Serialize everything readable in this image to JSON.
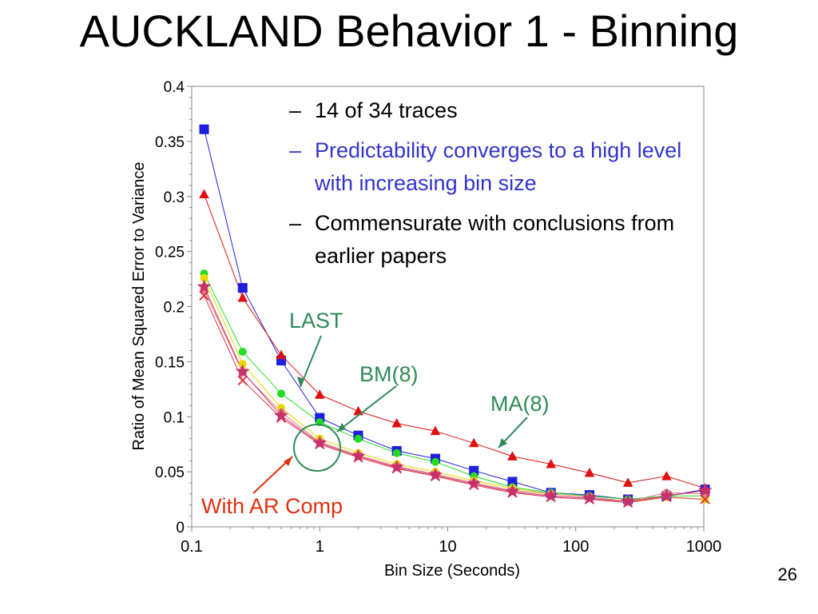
{
  "slide": {
    "title": "AUCKLAND Behavior 1 - Binning",
    "page_number": "26"
  },
  "bullets": [
    {
      "dash": "–",
      "text": "14 of 34 traces",
      "color": "#000000"
    },
    {
      "dash": "–",
      "text": "Predictability converges to a high level with increasing bin size",
      "color": "#3333cc"
    },
    {
      "dash": "–",
      "text": "Commensurate with conclusions from earlier papers",
      "color": "#000000"
    }
  ],
  "annotations": {
    "last": {
      "text": "LAST",
      "color": "#2e8b57"
    },
    "bm8": {
      "text": "BM(8)",
      "color": "#2e8b57"
    },
    "ma8": {
      "text": "MA(8)",
      "color": "#2e8b57"
    },
    "ar_comp": {
      "text": "With AR Comp",
      "color": "#e03010"
    }
  },
  "chart_data": {
    "type": "line",
    "x_scale": "log",
    "xlabel": "Bin Size (Seconds)",
    "ylabel": "Ratio of Mean Squared Error to Variance",
    "xlim": [
      0.1,
      1000
    ],
    "ylim": [
      0,
      0.4
    ],
    "x_ticks": [
      0.1,
      1,
      10,
      100,
      1000
    ],
    "x_tick_labels": [
      "0.1",
      "1",
      "10",
      "100",
      "1000"
    ],
    "y_ticks": [
      0,
      0.05,
      0.1,
      0.15,
      0.2,
      0.25,
      0.3,
      0.35,
      0.4
    ],
    "y_tick_labels": [
      "0",
      "0.05",
      "0.1",
      "0.15",
      "0.2",
      "0.25",
      "0.3",
      "0.35",
      "0.4"
    ],
    "grid": false,
    "x": [
      0.125,
      0.25,
      0.5,
      1,
      2,
      4,
      8,
      16,
      32,
      64,
      128,
      256,
      512,
      1024
    ],
    "series": [
      {
        "marker": "square",
        "color": "#1f1fe0",
        "values": [
          0.361,
          0.217,
          0.151,
          0.099,
          0.083,
          0.069,
          0.062,
          0.051,
          0.041,
          0.031,
          0.029,
          0.025,
          0.028,
          0.034
        ]
      },
      {
        "marker": "triangle",
        "color": "#e01010",
        "values": [
          0.302,
          0.208,
          0.156,
          0.12,
          0.105,
          0.094,
          0.087,
          0.076,
          0.064,
          0.057,
          0.049,
          0.04,
          0.046,
          0.035
        ]
      },
      {
        "marker": "circle",
        "color": "#22dd22",
        "values": [
          0.23,
          0.159,
          0.121,
          0.095,
          0.08,
          0.067,
          0.059,
          0.046,
          0.036,
          0.031,
          0.028,
          0.025,
          0.028,
          0.028
        ]
      },
      {
        "marker": "circle",
        "color": "#e8d800",
        "values": [
          0.226,
          0.148,
          0.108,
          0.08,
          0.067,
          0.057,
          0.05,
          0.042,
          0.035,
          0.03,
          0.027,
          0.023,
          0.027,
          0.025
        ]
      },
      {
        "marker": "circle",
        "color": "#e08080",
        "values": [
          0.215,
          0.14,
          0.104,
          0.077,
          0.065,
          0.055,
          0.048,
          0.04,
          0.033,
          0.03,
          0.027,
          0.023,
          0.031,
          0.03
        ]
      },
      {
        "marker": "x",
        "color": "#e03040",
        "values": [
          0.21,
          0.133,
          0.099,
          0.075,
          0.063,
          0.053,
          0.046,
          0.038,
          0.031,
          0.027,
          0.025,
          0.022,
          0.027,
          0.025
        ]
      },
      {
        "marker": "star",
        "color": "#c8306a",
        "values": [
          0.218,
          0.141,
          0.101,
          0.076,
          0.064,
          0.054,
          0.047,
          0.039,
          0.032,
          0.028,
          0.026,
          0.023,
          0.028,
          0.033
        ]
      }
    ]
  }
}
